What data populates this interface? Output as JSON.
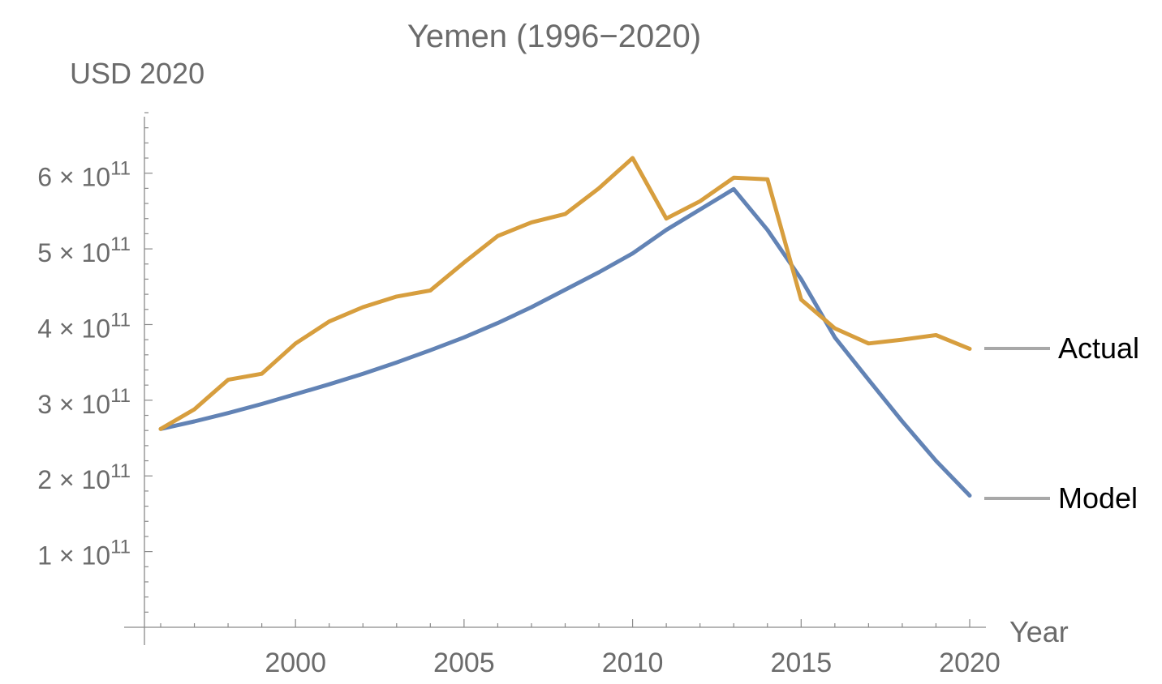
{
  "chart_data": {
    "type": "line",
    "title": "Yemen (1996−2020)",
    "xlabel": "Year",
    "ylabel": "USD 2020",
    "x": [
      1996,
      1997,
      1998,
      1999,
      2000,
      2001,
      2002,
      2003,
      2004,
      2005,
      2006,
      2007,
      2008,
      2009,
      2010,
      2011,
      2012,
      2013,
      2014,
      2015,
      2016,
      2017,
      2018,
      2019,
      2020
    ],
    "x_ticks": [
      {
        "value": 2000,
        "label": "2000"
      },
      {
        "value": 2005,
        "label": "2005"
      },
      {
        "value": 2010,
        "label": "2010"
      },
      {
        "value": 2015,
        "label": "2015"
      },
      {
        "value": 2020,
        "label": "2020"
      }
    ],
    "y_ticks": [
      {
        "value": 100000000000,
        "mantissa": "1",
        "exponent": "11"
      },
      {
        "value": 200000000000,
        "mantissa": "2",
        "exponent": "11"
      },
      {
        "value": 300000000000,
        "mantissa": "3",
        "exponent": "11"
      },
      {
        "value": 400000000000,
        "mantissa": "4",
        "exponent": "11"
      },
      {
        "value": 500000000000,
        "mantissa": "5",
        "exponent": "11"
      },
      {
        "value": 600000000000,
        "mantissa": "6",
        "exponent": "11"
      }
    ],
    "ylim": [
      0,
      680000000000
    ],
    "xlim": [
      1995.5,
      2020.5
    ],
    "series": [
      {
        "name": "Actual",
        "color": "#d79e3e",
        "values": [
          262000000000,
          288000000000,
          327000000000,
          335000000000,
          375000000000,
          404000000000,
          423000000000,
          437000000000,
          445000000000,
          482000000000,
          517000000000,
          535000000000,
          546000000000,
          580000000000,
          620000000000,
          540000000000,
          563000000000,
          594000000000,
          592000000000,
          433000000000,
          395000000000,
          375000000000,
          380000000000,
          386000000000,
          368000000000
        ]
      },
      {
        "name": "Model",
        "color": "#6283b5",
        "values": [
          262000000000,
          272000000000,
          283000000000,
          295000000000,
          308000000000,
          321000000000,
          335000000000,
          350000000000,
          366000000000,
          383000000000,
          402000000000,
          423000000000,
          446000000000,
          469000000000,
          494000000000,
          525000000000,
          552000000000,
          579000000000,
          525000000000,
          460000000000,
          383000000000,
          327000000000,
          272000000000,
          220000000000,
          174000000000
        ]
      }
    ],
    "legend": "right, next to line ends",
    "grid": false,
    "colors": {
      "axis": "#8a8a8a",
      "text": "#6b6b6b",
      "legend_line": "#a8a8a8"
    }
  }
}
